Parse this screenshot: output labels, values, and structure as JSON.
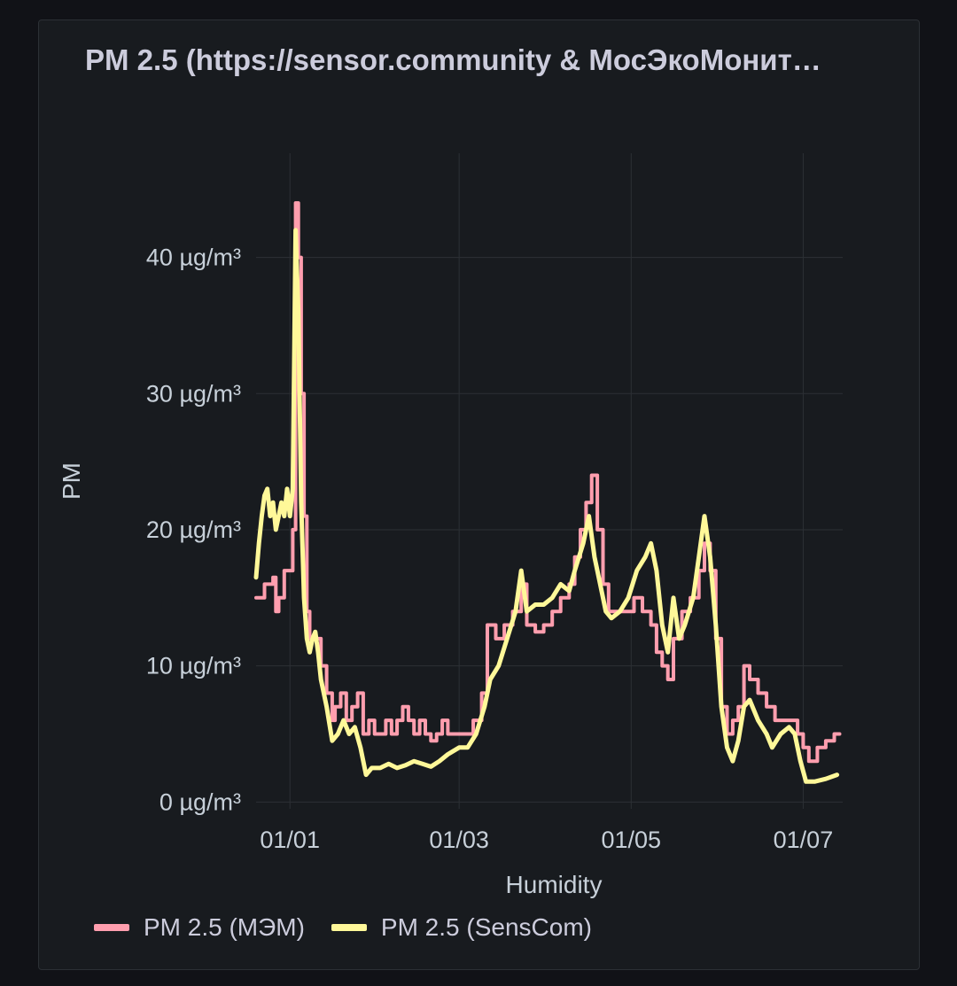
{
  "panel": {
    "title": "PM 2.5 (https://sensor.community & МосЭкоМонит…"
  },
  "colors": {
    "background": "#111217",
    "panel_bg": "#181b1f",
    "grid": "#2c3035",
    "series_mem": "#ff9eae",
    "series_senscom": "#fff899"
  },
  "chart_data": {
    "type": "line",
    "title": "PM 2.5 (https://sensor.community & МосЭкоМонит…",
    "xlabel": "Humidity",
    "ylabel": "PM",
    "y_unit": "µg/m³",
    "ylim": [
      -0.5,
      47
    ],
    "xlim": [
      "2023-12-20",
      "2024-07-15"
    ],
    "grid": true,
    "legend_position": "bottom-left",
    "y_ticks": [
      {
        "value": 0,
        "label": "0 µg/m³"
      },
      {
        "value": 10,
        "label": "10 µg/m³"
      },
      {
        "value": 20,
        "label": "20 µg/m³"
      },
      {
        "value": 30,
        "label": "30 µg/m³"
      },
      {
        "value": 40,
        "label": "40 µg/m³"
      }
    ],
    "x_ticks": [
      {
        "date": "2024-01-01",
        "label": "01/01"
      },
      {
        "date": "2024-03-01",
        "label": "01/03"
      },
      {
        "date": "2024-05-01",
        "label": "01/05"
      },
      {
        "date": "2024-07-01",
        "label": "01/07"
      }
    ],
    "series": [
      {
        "name": "PM 2.5 (МЭМ)",
        "color": "#ff9eae",
        "step": true,
        "points": [
          [
            "2023-12-20",
            15
          ],
          [
            "2023-12-23",
            16
          ],
          [
            "2023-12-26",
            16.5
          ],
          [
            "2023-12-27",
            14
          ],
          [
            "2023-12-28",
            15
          ],
          [
            "2023-12-30",
            17
          ],
          [
            "2024-01-01",
            17
          ],
          [
            "2024-01-02",
            20
          ],
          [
            "2024-01-03",
            44
          ],
          [
            "2024-01-04",
            40
          ],
          [
            "2024-01-05",
            30
          ],
          [
            "2024-01-06",
            21
          ],
          [
            "2024-01-07",
            14
          ],
          [
            "2024-01-08",
            12
          ],
          [
            "2024-01-10",
            12
          ],
          [
            "2024-01-12",
            10
          ],
          [
            "2024-01-14",
            8
          ],
          [
            "2024-01-16",
            6
          ],
          [
            "2024-01-17",
            7
          ],
          [
            "2024-01-19",
            8
          ],
          [
            "2024-01-21",
            6
          ],
          [
            "2024-01-23",
            7
          ],
          [
            "2024-01-25",
            8
          ],
          [
            "2024-01-27",
            5
          ],
          [
            "2024-01-29",
            6
          ],
          [
            "2024-01-31",
            5
          ],
          [
            "2024-02-02",
            5
          ],
          [
            "2024-02-04",
            6
          ],
          [
            "2024-02-06",
            5
          ],
          [
            "2024-02-08",
            6
          ],
          [
            "2024-02-10",
            7
          ],
          [
            "2024-02-12",
            6
          ],
          [
            "2024-02-14",
            5
          ],
          [
            "2024-02-16",
            6
          ],
          [
            "2024-02-18",
            5
          ],
          [
            "2024-02-20",
            4.5
          ],
          [
            "2024-02-22",
            5
          ],
          [
            "2024-02-24",
            6
          ],
          [
            "2024-02-26",
            5
          ],
          [
            "2024-02-28",
            5
          ],
          [
            "2024-03-02",
            5
          ],
          [
            "2024-03-04",
            5
          ],
          [
            "2024-03-06",
            6
          ],
          [
            "2024-03-09",
            8
          ],
          [
            "2024-03-11",
            13
          ],
          [
            "2024-03-14",
            12
          ],
          [
            "2024-03-17",
            13
          ],
          [
            "2024-03-20",
            14
          ],
          [
            "2024-03-23",
            16
          ],
          [
            "2024-03-25",
            13
          ],
          [
            "2024-03-28",
            12.5
          ],
          [
            "2024-03-31",
            13
          ],
          [
            "2024-04-03",
            14
          ],
          [
            "2024-04-06",
            15
          ],
          [
            "2024-04-09",
            16
          ],
          [
            "2024-04-11",
            18
          ],
          [
            "2024-04-13",
            20
          ],
          [
            "2024-04-15",
            22
          ],
          [
            "2024-04-17",
            24
          ],
          [
            "2024-04-19",
            20
          ],
          [
            "2024-04-21",
            16
          ],
          [
            "2024-04-23",
            14
          ],
          [
            "2024-04-26",
            14
          ],
          [
            "2024-04-29",
            14
          ],
          [
            "2024-05-02",
            15
          ],
          [
            "2024-05-05",
            14
          ],
          [
            "2024-05-08",
            13
          ],
          [
            "2024-05-10",
            11
          ],
          [
            "2024-05-12",
            10
          ],
          [
            "2024-05-14",
            9
          ],
          [
            "2024-05-16",
            12
          ],
          [
            "2024-05-19",
            14
          ],
          [
            "2024-05-22",
            15
          ],
          [
            "2024-05-25",
            17
          ],
          [
            "2024-05-27",
            19
          ],
          [
            "2024-05-29",
            17
          ],
          [
            "2024-05-31",
            12
          ],
          [
            "2024-06-02",
            7
          ],
          [
            "2024-06-04",
            5
          ],
          [
            "2024-06-06",
            6
          ],
          [
            "2024-06-08",
            7
          ],
          [
            "2024-06-10",
            10
          ],
          [
            "2024-06-12",
            9
          ],
          [
            "2024-06-15",
            8
          ],
          [
            "2024-06-18",
            7
          ],
          [
            "2024-06-21",
            6
          ],
          [
            "2024-06-24",
            6
          ],
          [
            "2024-06-27",
            6
          ],
          [
            "2024-06-29",
            5
          ],
          [
            "2024-07-01",
            4
          ],
          [
            "2024-07-03",
            3
          ],
          [
            "2024-07-06",
            4
          ],
          [
            "2024-07-09",
            4.5
          ],
          [
            "2024-07-12",
            5
          ]
        ]
      },
      {
        "name": "PM 2.5 (SensCom)",
        "color": "#fff899",
        "step": false,
        "points": [
          [
            "2023-12-20",
            16.5
          ],
          [
            "2023-12-21",
            19
          ],
          [
            "2023-12-22",
            21
          ],
          [
            "2023-12-23",
            22.5
          ],
          [
            "2023-12-24",
            23
          ],
          [
            "2023-12-25",
            21
          ],
          [
            "2023-12-26",
            22
          ],
          [
            "2023-12-27",
            20
          ],
          [
            "2023-12-28",
            21
          ],
          [
            "2023-12-29",
            22
          ],
          [
            "2023-12-30",
            21
          ],
          [
            "2023-12-31",
            23
          ],
          [
            "2024-01-01",
            21
          ],
          [
            "2024-01-02",
            23
          ],
          [
            "2024-01-03",
            42
          ],
          [
            "2024-01-04",
            36
          ],
          [
            "2024-01-05",
            22
          ],
          [
            "2024-01-06",
            15
          ],
          [
            "2024-01-07",
            12
          ],
          [
            "2024-01-08",
            11
          ],
          [
            "2024-01-09",
            12
          ],
          [
            "2024-01-10",
            12.5
          ],
          [
            "2024-01-11",
            11
          ],
          [
            "2024-01-12",
            9
          ],
          [
            "2024-01-14",
            7
          ],
          [
            "2024-01-16",
            4.5
          ],
          [
            "2024-01-18",
            5
          ],
          [
            "2024-01-20",
            6
          ],
          [
            "2024-01-22",
            5
          ],
          [
            "2024-01-24",
            5.5
          ],
          [
            "2024-01-26",
            4
          ],
          [
            "2024-01-28",
            2
          ],
          [
            "2024-01-30",
            2.5
          ],
          [
            "2024-02-02",
            2.5
          ],
          [
            "2024-02-05",
            2.8
          ],
          [
            "2024-02-08",
            2.5
          ],
          [
            "2024-02-11",
            2.7
          ],
          [
            "2024-02-14",
            3
          ],
          [
            "2024-02-17",
            2.8
          ],
          [
            "2024-02-20",
            2.6
          ],
          [
            "2024-02-23",
            3
          ],
          [
            "2024-02-26",
            3.5
          ],
          [
            "2024-03-01",
            4
          ],
          [
            "2024-03-04",
            4
          ],
          [
            "2024-03-07",
            5
          ],
          [
            "2024-03-10",
            7
          ],
          [
            "2024-03-12",
            9
          ],
          [
            "2024-03-15",
            10
          ],
          [
            "2024-03-18",
            12
          ],
          [
            "2024-03-21",
            14
          ],
          [
            "2024-03-23",
            17
          ],
          [
            "2024-03-25",
            14
          ],
          [
            "2024-03-28",
            14.5
          ],
          [
            "2024-03-31",
            14.5
          ],
          [
            "2024-04-03",
            15
          ],
          [
            "2024-04-06",
            16
          ],
          [
            "2024-04-09",
            15.5
          ],
          [
            "2024-04-11",
            17
          ],
          [
            "2024-04-14",
            19
          ],
          [
            "2024-04-16",
            21
          ],
          [
            "2024-04-18",
            18
          ],
          [
            "2024-04-20",
            16
          ],
          [
            "2024-04-22",
            14
          ],
          [
            "2024-04-24",
            13.5
          ],
          [
            "2024-04-27",
            14
          ],
          [
            "2024-04-30",
            15
          ],
          [
            "2024-05-03",
            17
          ],
          [
            "2024-05-06",
            18
          ],
          [
            "2024-05-08",
            19
          ],
          [
            "2024-05-10",
            17
          ],
          [
            "2024-05-12",
            13
          ],
          [
            "2024-05-14",
            11
          ],
          [
            "2024-05-16",
            15
          ],
          [
            "2024-05-18",
            12
          ],
          [
            "2024-05-20",
            13
          ],
          [
            "2024-05-23",
            15
          ],
          [
            "2024-05-25",
            18
          ],
          [
            "2024-05-27",
            21
          ],
          [
            "2024-05-29",
            18
          ],
          [
            "2024-05-31",
            13
          ],
          [
            "2024-06-02",
            7
          ],
          [
            "2024-06-04",
            4
          ],
          [
            "2024-06-06",
            3
          ],
          [
            "2024-06-08",
            4.5
          ],
          [
            "2024-06-10",
            7
          ],
          [
            "2024-06-12",
            7.5
          ],
          [
            "2024-06-15",
            6
          ],
          [
            "2024-06-18",
            5
          ],
          [
            "2024-06-20",
            4
          ],
          [
            "2024-06-23",
            5
          ],
          [
            "2024-06-26",
            5.5
          ],
          [
            "2024-06-28",
            5
          ],
          [
            "2024-06-30",
            3
          ],
          [
            "2024-07-02",
            1.5
          ],
          [
            "2024-07-05",
            1.5
          ],
          [
            "2024-07-09",
            1.7
          ],
          [
            "2024-07-13",
            2
          ]
        ]
      }
    ]
  },
  "legend": {
    "items": [
      {
        "label": "PM 2.5 (МЭМ)",
        "color": "#ff9eae"
      },
      {
        "label": "PM 2.5 (SensCom)",
        "color": "#fff899"
      }
    ]
  }
}
